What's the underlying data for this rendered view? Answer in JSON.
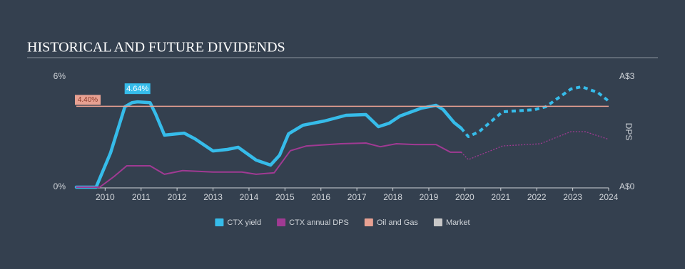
{
  "chart_data": {
    "type": "line",
    "title": "HISTORICAL AND FUTURE DIVIDENDS",
    "y2label": "DPS",
    "xlim": [
      2009.2,
      2024
    ],
    "xticks": [
      2010,
      2011,
      2012,
      2013,
      2014,
      2015,
      2016,
      2017,
      2018,
      2019,
      2020,
      2021,
      2022,
      2023,
      2024
    ],
    "ylim": [
      0,
      6
    ],
    "yticks": [
      {
        "value": 0,
        "label": "0%"
      },
      {
        "value": 6,
        "label": "6%"
      }
    ],
    "y2lim": [
      0,
      3
    ],
    "y2ticks": [
      {
        "value": 0,
        "label": "A$0"
      },
      {
        "value": 3,
        "label": "A$3"
      }
    ],
    "series": [
      {
        "name": "CTX yield",
        "color": "#36bcea",
        "x": [
          2009.2,
          2009.75,
          2010.15,
          2010.55,
          2010.75,
          2010.9,
          2011.25,
          2011.4,
          2011.65,
          2012.2,
          2012.5,
          2013.0,
          2013.4,
          2013.7,
          2014.2,
          2014.6,
          2014.85,
          2015.1,
          2015.5,
          2016.1,
          2016.7,
          2017.25,
          2017.6,
          2017.9,
          2018.2,
          2018.8,
          2019.2,
          2019.4,
          2019.7,
          2019.9
        ],
        "values": [
          0,
          0,
          1.86,
          4.37,
          4.6,
          4.64,
          4.6,
          4.0,
          2.83,
          2.94,
          2.63,
          1.97,
          2.05,
          2.17,
          1.47,
          1.2,
          1.74,
          2.9,
          3.37,
          3.6,
          3.91,
          3.95,
          3.29,
          3.48,
          3.87,
          4.3,
          4.45,
          4.22,
          3.52,
          3.21
        ]
      },
      {
        "color": "#36bcea",
        "dashed": true,
        "x": [
          2019.9,
          2020.1,
          2020.4,
          2021.05,
          2021.95,
          2022.25,
          2022.95,
          2023.25,
          2023.7,
          2024
        ],
        "values": [
          3.21,
          2.75,
          3.02,
          4.1,
          4.22,
          4.37,
          5.34,
          5.46,
          5.15,
          4.68
        ]
      },
      {
        "name": "CTX annual DPS",
        "color": "#a03a93",
        "axis": "y2",
        "x": [
          2009.2,
          2009.85,
          2010.25,
          2010.6,
          2011.25,
          2011.65,
          2012.15,
          2013.0,
          2013.8,
          2014.2,
          2014.7,
          2015.15,
          2015.6,
          2016.55,
          2017.25,
          2017.65,
          2018.1,
          2018.6,
          2019.2,
          2019.6,
          2019.9
        ],
        "values": [
          0,
          0,
          0.29,
          0.58,
          0.58,
          0.35,
          0.45,
          0.41,
          0.41,
          0.35,
          0.39,
          0.99,
          1.12,
          1.18,
          1.2,
          1.1,
          1.18,
          1.16,
          1.16,
          0.95,
          0.95
        ]
      },
      {
        "color": "#a03a93",
        "axis": "y2",
        "dashed": true,
        "x": [
          2019.9,
          2020.1,
          2021.05,
          2022.1,
          2022.95,
          2023.35,
          2024
        ],
        "values": [
          0.95,
          0.75,
          1.12,
          1.18,
          1.51,
          1.51,
          1.3
        ]
      },
      {
        "name": "Oil and Gas",
        "color": "#e8a192",
        "hline": true,
        "values": [
          4.4
        ],
        "value_labels": [
          "4.40%"
        ]
      },
      {
        "name": "Market",
        "color": "#c8c8c8",
        "values": []
      }
    ],
    "annotations": [
      {
        "x": 2010.9,
        "value": 4.64,
        "label": "4.64%",
        "color": "#36bcea"
      }
    ]
  }
}
